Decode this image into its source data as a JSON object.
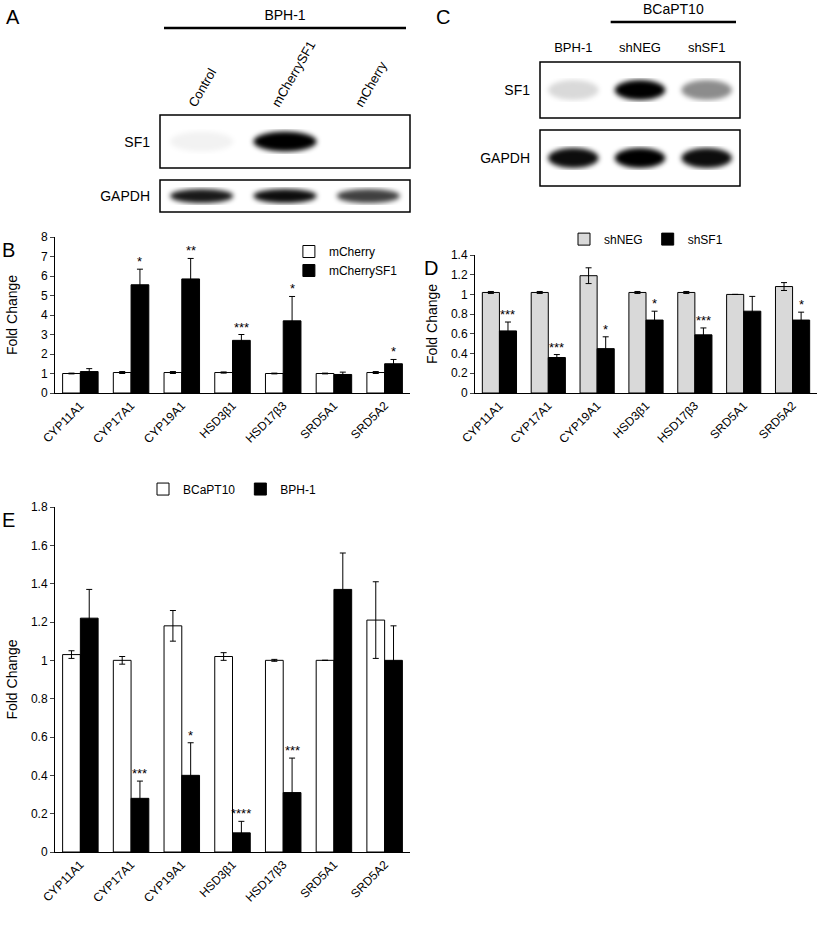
{
  "chart_data": [
    {
      "panel": "B",
      "type": "bar",
      "ylabel": "Fold Change",
      "categories": [
        "CYP11A1",
        "CYP17A1",
        "CYP19A1",
        "HSD3β1",
        "HSD17β3",
        "SRD5A1",
        "SRD5A2"
      ],
      "ylim": [
        0,
        8
      ],
      "yticks": [
        0,
        1,
        2,
        3,
        4,
        5,
        6,
        7,
        8
      ],
      "legend": "top right",
      "series": [
        {
          "name": "mCherry",
          "color": "#ffffff",
          "values": [
            1,
            1.05,
            1.05,
            1.05,
            1,
            1,
            1.05
          ],
          "errors": [
            0.02,
            0.05,
            0.05,
            0.03,
            0.02,
            0.02,
            0.05
          ],
          "significance": [
            null,
            null,
            null,
            null,
            null,
            null,
            null
          ]
        },
        {
          "name": "mCherrySF1",
          "color": "#000000",
          "values": [
            1.1,
            5.55,
            5.85,
            2.7,
            3.7,
            0.95,
            1.5
          ],
          "errors": [
            0.15,
            0.8,
            1.05,
            0.3,
            1.25,
            0.12,
            0.22
          ],
          "significance": [
            null,
            "*",
            "**",
            "***",
            "*",
            null,
            "*"
          ]
        }
      ]
    },
    {
      "panel": "D",
      "type": "bar",
      "ylabel": "Fold Change",
      "categories": [
        "CYP11A1",
        "CYP17A1",
        "CYP19A1",
        "HSD3β1",
        "HSD17β3",
        "SRD5A1",
        "SRD5A2"
      ],
      "ylim": [
        0,
        1.4
      ],
      "yticks": [
        0,
        0.2,
        0.4,
        0.6,
        0.8,
        1,
        1.2,
        1.4
      ],
      "legend": "top",
      "series": [
        {
          "name": "shNEG",
          "color": "#d9d9d9",
          "values": [
            1.02,
            1.02,
            1.19,
            1.02,
            1.02,
            1.0,
            1.08
          ],
          "errors": [
            0.01,
            0.01,
            0.08,
            0.01,
            0.01,
            0,
            0.04
          ],
          "significance": [
            null,
            null,
            null,
            null,
            null,
            null,
            null
          ]
        },
        {
          "name": "shSF1",
          "color": "#000000",
          "values": [
            0.63,
            0.36,
            0.45,
            0.74,
            0.59,
            0.83,
            0.74
          ],
          "errors": [
            0.09,
            0.03,
            0.12,
            0.09,
            0.07,
            0.15,
            0.08
          ],
          "significance": [
            "***",
            "***",
            "*",
            "*",
            "***",
            null,
            "*"
          ]
        }
      ]
    },
    {
      "panel": "E",
      "type": "bar",
      "ylabel": "Fold Change",
      "categories": [
        "CYP11A1",
        "CYP17A1",
        "CYP19A1",
        "HSD3β1",
        "HSD17β3",
        "SRD5A1",
        "SRD5A2"
      ],
      "ylim": [
        0,
        1.8
      ],
      "yticks": [
        0,
        0.2,
        0.4,
        0.6,
        0.8,
        1,
        1.2,
        1.4,
        1.6,
        1.8
      ],
      "legend": "top",
      "series": [
        {
          "name": "BCaPT10",
          "color": "#ffffff",
          "values": [
            1.03,
            1.0,
            1.18,
            1.02,
            1.0,
            1.0,
            1.21
          ],
          "errors": [
            0.02,
            0.02,
            0.08,
            0.02,
            0.005,
            0,
            0.2
          ],
          "significance": [
            null,
            null,
            null,
            null,
            null,
            null,
            null
          ]
        },
        {
          "name": "BPH-1",
          "color": "#000000",
          "values": [
            1.22,
            0.28,
            0.4,
            0.1,
            0.31,
            1.37,
            1.0
          ],
          "errors": [
            0.15,
            0.09,
            0.17,
            0.06,
            0.18,
            0.19,
            0.18
          ],
          "significance": [
            null,
            "***",
            "*",
            "****",
            "***",
            null,
            null
          ]
        }
      ]
    }
  ],
  "blots": [
    {
      "panel": "A",
      "header": "BPH-1",
      "header_lanes": [
        0,
        2
      ],
      "lanes": [
        "Control",
        "mCherrySF1",
        "mCherry"
      ],
      "rows": [
        {
          "name": "SF1",
          "bands": [
            0.05,
            1,
            0
          ]
        },
        {
          "name": "GAPDH",
          "bands": [
            0.9,
            0.95,
            0.75
          ]
        }
      ]
    },
    {
      "panel": "C",
      "header": "BCaPT10",
      "header_lanes": [
        1,
        2
      ],
      "lanes": [
        "BPH-1",
        "shNEG",
        "shSF1"
      ],
      "rows": [
        {
          "name": "SF1",
          "bands": [
            0.15,
            1,
            0.45
          ]
        },
        {
          "name": "GAPDH",
          "bands": [
            0.95,
            1,
            0.95
          ]
        }
      ]
    }
  ]
}
